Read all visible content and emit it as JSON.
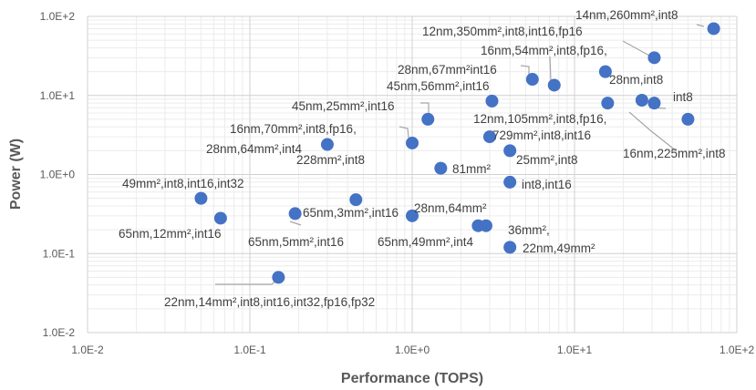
{
  "chart_data": {
    "type": "scatter",
    "xlabel": "Performance (TOPS)",
    "ylabel": "Power (W)",
    "x_scale": "log",
    "y_scale": "log",
    "xlim": [
      0.01,
      100
    ],
    "ylim": [
      0.01,
      100
    ],
    "x_ticks": [
      "1.0E-2",
      "1.0E-1",
      "1.0E+0",
      "1.0E+1",
      "1.0E+2"
    ],
    "y_ticks": [
      "1.0E+2",
      "1.0E+1",
      "1.0E+0",
      "1.0E-1",
      "1.0E-2"
    ],
    "grid": true,
    "marker_color": "#4472C4",
    "points": [
      {
        "x": 72,
        "y": 70
      },
      {
        "x": 31,
        "y": 30
      },
      {
        "x": 15.5,
        "y": 20
      },
      {
        "x": 5.5,
        "y": 16
      },
      {
        "x": 7.5,
        "y": 13.5
      },
      {
        "x": 3.1,
        "y": 8.5
      },
      {
        "x": 16,
        "y": 8
      },
      {
        "x": 26,
        "y": 8.7
      },
      {
        "x": 31,
        "y": 8
      },
      {
        "x": 50,
        "y": 5
      },
      {
        "x": 1.25,
        "y": 5
      },
      {
        "x": 3,
        "y": 3
      },
      {
        "x": 1,
        "y": 2.5
      },
      {
        "x": 0.3,
        "y": 2.4
      },
      {
        "x": 4,
        "y": 2
      },
      {
        "x": 1.5,
        "y": 1.2
      },
      {
        "x": 4,
        "y": 0.8
      },
      {
        "x": 0.05,
        "y": 0.5
      },
      {
        "x": 0.45,
        "y": 0.48
      },
      {
        "x": 0.19,
        "y": 0.32
      },
      {
        "x": 0.066,
        "y": 0.28
      },
      {
        "x": 1,
        "y": 0.3
      },
      {
        "x": 2.55,
        "y": 0.225
      },
      {
        "x": 2.85,
        "y": 0.225
      },
      {
        "x": 4,
        "y": 0.12
      },
      {
        "x": 0.15,
        "y": 0.05
      }
    ],
    "labels": [
      "14nm,260mm²,int8",
      "12nm,350mm²,int8,int16,fp16",
      "16nm,54mm²,int8,fp16,",
      "28nm,int8",
      "28nm,67mm²int16",
      "45nm,56mm²,int16",
      "int8",
      "45nm,25mm²,int16",
      "12nm,105mm²,int8,fp16,",
      "16nm,70mm²,int8,fp16,",
      "729mm²,int8,int16",
      "16nm,225mm²,int8",
      "28nm,64mm²,int4",
      "25mm²,int8",
      "228mm²,int8",
      "81mm²",
      "int8,int16",
      "49mm²,int8,int16,int32",
      "65nm,3mm²,int16",
      "28nm,64mm²",
      "65nm,12mm²,int16",
      "65nm,5mm²,int16",
      "36mm²,",
      "65nm,49mm²,int4",
      "22nm,49mm²",
      "22nm,14mm²,int8,int16,int32,fp16,fp32"
    ]
  }
}
